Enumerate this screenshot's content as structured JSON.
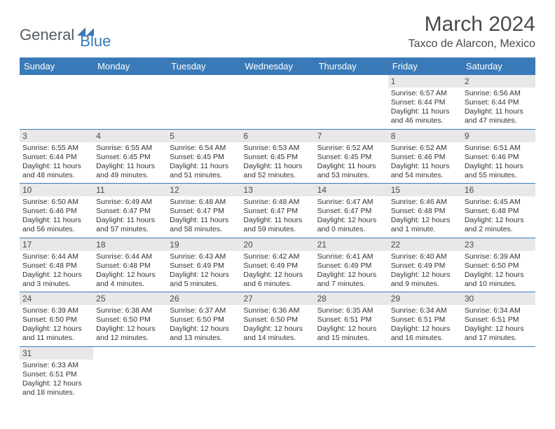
{
  "logo": {
    "general": "General",
    "blue": "Blue"
  },
  "header": {
    "month_title": "March 2024",
    "location": "Taxco de Alarcon, Mexico"
  },
  "colors": {
    "header_bg": "#3a7ab8",
    "header_text": "#ffffff",
    "daynum_bg": "#e8e8e8",
    "text": "#333333",
    "title_text": "#4a4a4a"
  },
  "weekdays": [
    "Sunday",
    "Monday",
    "Tuesday",
    "Wednesday",
    "Thursday",
    "Friday",
    "Saturday"
  ],
  "weeks": [
    [
      null,
      null,
      null,
      null,
      null,
      {
        "num": "1",
        "sunrise": "Sunrise: 6:57 AM",
        "sunset": "Sunset: 6:44 PM",
        "daylight": "Daylight: 11 hours and 46 minutes."
      },
      {
        "num": "2",
        "sunrise": "Sunrise: 6:56 AM",
        "sunset": "Sunset: 6:44 PM",
        "daylight": "Daylight: 11 hours and 47 minutes."
      }
    ],
    [
      {
        "num": "3",
        "sunrise": "Sunrise: 6:55 AM",
        "sunset": "Sunset: 6:44 PM",
        "daylight": "Daylight: 11 hours and 48 minutes."
      },
      {
        "num": "4",
        "sunrise": "Sunrise: 6:55 AM",
        "sunset": "Sunset: 6:45 PM",
        "daylight": "Daylight: 11 hours and 49 minutes."
      },
      {
        "num": "5",
        "sunrise": "Sunrise: 6:54 AM",
        "sunset": "Sunset: 6:45 PM",
        "daylight": "Daylight: 11 hours and 51 minutes."
      },
      {
        "num": "6",
        "sunrise": "Sunrise: 6:53 AM",
        "sunset": "Sunset: 6:45 PM",
        "daylight": "Daylight: 11 hours and 52 minutes."
      },
      {
        "num": "7",
        "sunrise": "Sunrise: 6:52 AM",
        "sunset": "Sunset: 6:45 PM",
        "daylight": "Daylight: 11 hours and 53 minutes."
      },
      {
        "num": "8",
        "sunrise": "Sunrise: 6:52 AM",
        "sunset": "Sunset: 6:46 PM",
        "daylight": "Daylight: 11 hours and 54 minutes."
      },
      {
        "num": "9",
        "sunrise": "Sunrise: 6:51 AM",
        "sunset": "Sunset: 6:46 PM",
        "daylight": "Daylight: 11 hours and 55 minutes."
      }
    ],
    [
      {
        "num": "10",
        "sunrise": "Sunrise: 6:50 AM",
        "sunset": "Sunset: 6:46 PM",
        "daylight": "Daylight: 11 hours and 56 minutes."
      },
      {
        "num": "11",
        "sunrise": "Sunrise: 6:49 AM",
        "sunset": "Sunset: 6:47 PM",
        "daylight": "Daylight: 11 hours and 57 minutes."
      },
      {
        "num": "12",
        "sunrise": "Sunrise: 6:48 AM",
        "sunset": "Sunset: 6:47 PM",
        "daylight": "Daylight: 11 hours and 58 minutes."
      },
      {
        "num": "13",
        "sunrise": "Sunrise: 6:48 AM",
        "sunset": "Sunset: 6:47 PM",
        "daylight": "Daylight: 11 hours and 59 minutes."
      },
      {
        "num": "14",
        "sunrise": "Sunrise: 6:47 AM",
        "sunset": "Sunset: 6:47 PM",
        "daylight": "Daylight: 12 hours and 0 minutes."
      },
      {
        "num": "15",
        "sunrise": "Sunrise: 6:46 AM",
        "sunset": "Sunset: 6:48 PM",
        "daylight": "Daylight: 12 hours and 1 minute."
      },
      {
        "num": "16",
        "sunrise": "Sunrise: 6:45 AM",
        "sunset": "Sunset: 6:48 PM",
        "daylight": "Daylight: 12 hours and 2 minutes."
      }
    ],
    [
      {
        "num": "17",
        "sunrise": "Sunrise: 6:44 AM",
        "sunset": "Sunset: 6:48 PM",
        "daylight": "Daylight: 12 hours and 3 minutes."
      },
      {
        "num": "18",
        "sunrise": "Sunrise: 6:44 AM",
        "sunset": "Sunset: 6:48 PM",
        "daylight": "Daylight: 12 hours and 4 minutes."
      },
      {
        "num": "19",
        "sunrise": "Sunrise: 6:43 AM",
        "sunset": "Sunset: 6:49 PM",
        "daylight": "Daylight: 12 hours and 5 minutes."
      },
      {
        "num": "20",
        "sunrise": "Sunrise: 6:42 AM",
        "sunset": "Sunset: 6:49 PM",
        "daylight": "Daylight: 12 hours and 6 minutes."
      },
      {
        "num": "21",
        "sunrise": "Sunrise: 6:41 AM",
        "sunset": "Sunset: 6:49 PM",
        "daylight": "Daylight: 12 hours and 7 minutes."
      },
      {
        "num": "22",
        "sunrise": "Sunrise: 6:40 AM",
        "sunset": "Sunset: 6:49 PM",
        "daylight": "Daylight: 12 hours and 9 minutes."
      },
      {
        "num": "23",
        "sunrise": "Sunrise: 6:39 AM",
        "sunset": "Sunset: 6:50 PM",
        "daylight": "Daylight: 12 hours and 10 minutes."
      }
    ],
    [
      {
        "num": "24",
        "sunrise": "Sunrise: 6:39 AM",
        "sunset": "Sunset: 6:50 PM",
        "daylight": "Daylight: 12 hours and 11 minutes."
      },
      {
        "num": "25",
        "sunrise": "Sunrise: 6:38 AM",
        "sunset": "Sunset: 6:50 PM",
        "daylight": "Daylight: 12 hours and 12 minutes."
      },
      {
        "num": "26",
        "sunrise": "Sunrise: 6:37 AM",
        "sunset": "Sunset: 6:50 PM",
        "daylight": "Daylight: 12 hours and 13 minutes."
      },
      {
        "num": "27",
        "sunrise": "Sunrise: 6:36 AM",
        "sunset": "Sunset: 6:50 PM",
        "daylight": "Daylight: 12 hours and 14 minutes."
      },
      {
        "num": "28",
        "sunrise": "Sunrise: 6:35 AM",
        "sunset": "Sunset: 6:51 PM",
        "daylight": "Daylight: 12 hours and 15 minutes."
      },
      {
        "num": "29",
        "sunrise": "Sunrise: 6:34 AM",
        "sunset": "Sunset: 6:51 PM",
        "daylight": "Daylight: 12 hours and 16 minutes."
      },
      {
        "num": "30",
        "sunrise": "Sunrise: 6:34 AM",
        "sunset": "Sunset: 6:51 PM",
        "daylight": "Daylight: 12 hours and 17 minutes."
      }
    ],
    [
      {
        "num": "31",
        "sunrise": "Sunrise: 6:33 AM",
        "sunset": "Sunset: 6:51 PM",
        "daylight": "Daylight: 12 hours and 18 minutes."
      },
      null,
      null,
      null,
      null,
      null,
      null
    ]
  ]
}
